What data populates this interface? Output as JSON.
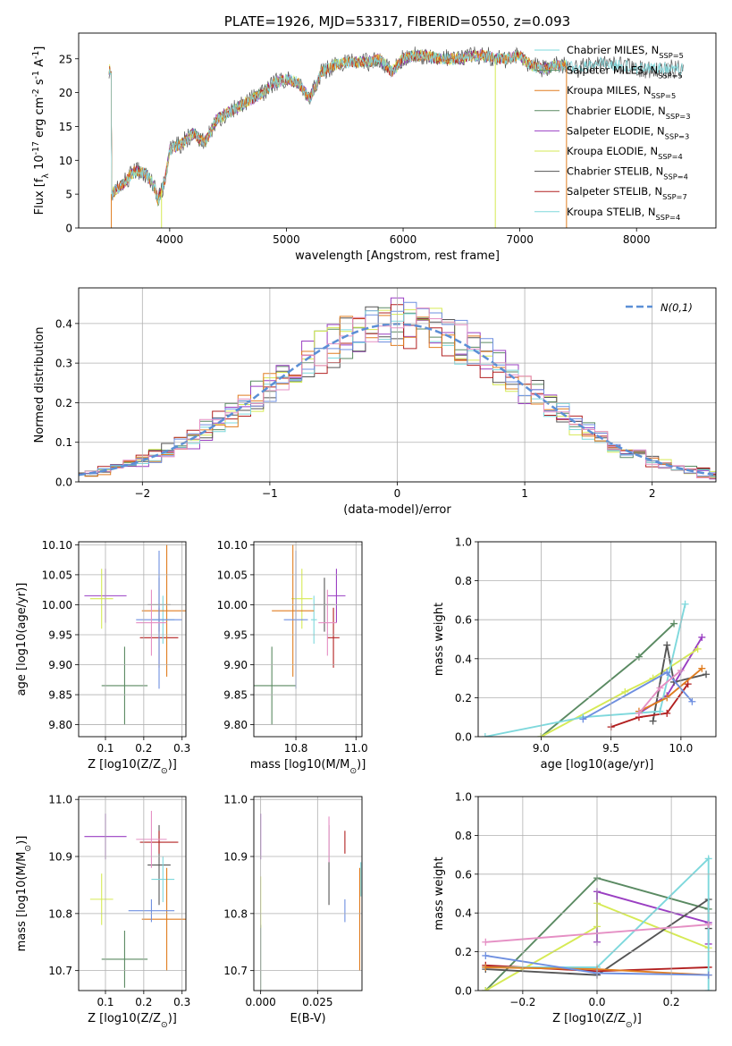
{
  "colors": {
    "c0": "#5a8a62",
    "c1": "#9a3fc2",
    "c2": "#d6ea55",
    "c3": "#555555",
    "c4": "#b22020",
    "c5": "#7ed8dc",
    "c6": "#e07d20",
    "c7": "#6e8fe0",
    "c8": "#e58fc4",
    "normal": "#5b8fd6",
    "grid": "#b0b0b0"
  },
  "chart_data": [
    {
      "id": "spectrum",
      "type": "line",
      "title": "PLATE=1926, MJD=53317, FIBERID=0550, z=0.093",
      "xlabel": "wavelength [Angstrom, rest frame]",
      "ylabel": "Flux [f_λ 10^-17 erg cm^-2 s^-1 A^-1]",
      "xlim": [
        3220,
        8680
      ],
      "ylim": [
        0,
        28.8
      ],
      "xticks": [
        "4000",
        "5000",
        "6000",
        "7000",
        "8000"
      ],
      "yticks": [
        "0",
        "5",
        "10",
        "15",
        "20",
        "25"
      ],
      "grid": false,
      "legend_position": "upper-right",
      "legend": [
        {
          "label": "Chabrier MILES, N_SSP=5",
          "color": "c5"
        },
        {
          "label": "Salpeter MILES, N_SSP=5",
          "color": "c0"
        },
        {
          "label": "Kroupa MILES, N_SSP=5",
          "color": "c6"
        },
        {
          "label": "Chabrier ELODIE, N_SSP=3",
          "color": "c0"
        },
        {
          "label": "Salpeter ELODIE, N_SSP=3",
          "color": "c1"
        },
        {
          "label": "Kroupa ELODIE, N_SSP=4",
          "color": "c2"
        },
        {
          "label": "Chabrier STELIB, N_SSP=4",
          "color": "c3"
        },
        {
          "label": "Salpeter STELIB, N_SSP=7",
          "color": "c4"
        },
        {
          "label": "Kroupa STELIB, N_SSP=4",
          "color": "c5"
        }
      ],
      "continuum": [
        [
          3500,
          5
        ],
        [
          3600,
          6.5
        ],
        [
          3700,
          8.5
        ],
        [
          3800,
          8
        ],
        [
          3870,
          6
        ],
        [
          3900,
          4
        ],
        [
          3960,
          7
        ],
        [
          4000,
          11.5
        ],
        [
          4100,
          12.5
        ],
        [
          4200,
          14
        ],
        [
          4300,
          12.5
        ],
        [
          4400,
          16
        ],
        [
          4500,
          17
        ],
        [
          4600,
          18
        ],
        [
          4700,
          19
        ],
        [
          4800,
          20
        ],
        [
          4900,
          21.5
        ],
        [
          5000,
          22
        ],
        [
          5100,
          21.5
        ],
        [
          5200,
          19
        ],
        [
          5300,
          23
        ],
        [
          5400,
          24
        ],
        [
          5500,
          24.5
        ],
        [
          5600,
          24.5
        ],
        [
          5700,
          24.5
        ],
        [
          5800,
          25
        ],
        [
          5900,
          23
        ],
        [
          6000,
          25
        ],
        [
          6100,
          25.5
        ],
        [
          6200,
          25.5
        ],
        [
          6300,
          25
        ],
        [
          6400,
          25
        ],
        [
          6500,
          25
        ],
        [
          6600,
          25.5
        ],
        [
          6700,
          25.5
        ],
        [
          6800,
          25
        ],
        [
          6900,
          25
        ],
        [
          7000,
          25.5
        ],
        [
          7100,
          24
        ],
        [
          7200,
          23.5
        ],
        [
          7300,
          24
        ],
        [
          7400,
          24
        ],
        [
          7500,
          23.5
        ],
        [
          7600,
          24
        ],
        [
          7700,
          24.5
        ],
        [
          7800,
          24
        ],
        [
          7900,
          24
        ],
        [
          8000,
          23.5
        ],
        [
          8100,
          23.5
        ],
        [
          8200,
          23.5
        ],
        [
          8300,
          23.5
        ],
        [
          8400,
          23.5
        ]
      ],
      "series": [
        {
          "color": "c3",
          "x0": 3480,
          "x1": 8400,
          "noise": 1.4
        },
        {
          "color": "c0",
          "x0": 3480,
          "x1": 7400,
          "noise": 0.9
        },
        {
          "color": "c1",
          "x0": 3480,
          "x1": 7400,
          "noise": 0.9
        },
        {
          "color": "c2",
          "x0": 3480,
          "x1": 7400,
          "noise": 0.9
        },
        {
          "color": "c4",
          "x0": 3480,
          "x1": 7400,
          "noise": 0.8
        },
        {
          "color": "c6",
          "x0": 3480,
          "x1": 7400,
          "noise": 0.8
        },
        {
          "color": "c5",
          "x0": 3480,
          "x1": 8400,
          "noise": 0.9
        }
      ],
      "drops": [
        {
          "x": 3500,
          "color": "c6"
        },
        {
          "x": 3930,
          "color": "c2"
        },
        {
          "x": 6790,
          "color": "c2"
        },
        {
          "x": 7400,
          "color": "c6"
        }
      ]
    },
    {
      "id": "residuals",
      "type": "histogram",
      "xlabel": "(data-model)/error",
      "ylabel": "Normed distribution",
      "xlim": [
        -2.5,
        2.5
      ],
      "ylim": [
        0,
        0.49
      ],
      "xticks": [
        "-2",
        "-1",
        "0",
        "1",
        "2"
      ],
      "yticks": [
        "0.0",
        "0.1",
        "0.2",
        "0.3",
        "0.4"
      ],
      "grid": true,
      "legend_position": "upper-right",
      "legend": [
        {
          "label": "N(0,1)",
          "color": "normal",
          "dashed": true
        }
      ],
      "bins": {
        "start": -2.55,
        "width": 0.1,
        "count": 51
      },
      "series_colors": [
        "c0",
        "c1",
        "c2",
        "c3",
        "c4",
        "c5",
        "c6",
        "c7",
        "c8"
      ]
    },
    {
      "id": "z-age",
      "type": "errorbar",
      "xlabel": "Z [log10(Z/Z_⊙)]",
      "ylabel": "age [log10(age/yr)]",
      "xlim": [
        0.03,
        0.31
      ],
      "ylim": [
        9.78,
        10.105
      ],
      "xticks": [
        "0.1",
        "0.2",
        "0.3"
      ],
      "yticks": [
        "9.80",
        "9.85",
        "9.90",
        "9.95",
        "10.00",
        "10.05",
        "10.10"
      ],
      "grid": true,
      "points": [
        {
          "color": "c0",
          "x": 0.15,
          "xerr": 0.06,
          "y": 9.865,
          "yerr": 0.065
        },
        {
          "color": "c1",
          "x": 0.1,
          "xerr": 0.055,
          "y": 10.015,
          "yerr": 0.045
        },
        {
          "color": "c2",
          "x": 0.09,
          "xerr": 0.03,
          "y": 10.01,
          "yerr": 0.05
        },
        {
          "color": "c3",
          "x": 0.24,
          "xerr": 0.03,
          "y": 10.0,
          "yerr": 0.045
        },
        {
          "color": "c4",
          "x": 0.24,
          "xerr": 0.05,
          "y": 9.945,
          "yerr": 0.05
        },
        {
          "color": "c5",
          "x": 0.25,
          "xerr": 0.03,
          "y": 9.975,
          "yerr": 0.04
        },
        {
          "color": "c6",
          "x": 0.26,
          "xerr": 0.065,
          "y": 9.99,
          "yerr": 0.11
        },
        {
          "color": "c7",
          "x": 0.24,
          "xerr": 0.06,
          "y": 9.975,
          "yerr": 0.115
        },
        {
          "color": "c8",
          "x": 0.22,
          "xerr": 0.04,
          "y": 9.97,
          "yerr": 0.055
        }
      ]
    },
    {
      "id": "mass-age",
      "type": "errorbar",
      "xlabel": "mass [log10(M/M_⊙)]",
      "ylabel": "",
      "xlim": [
        10.66,
        11.02
      ],
      "ylim": [
        9.78,
        10.105
      ],
      "xticks": [
        "10.8",
        "11.0"
      ],
      "yticks": [
        "9.80",
        "9.85",
        "9.90",
        "9.95",
        "10.00",
        "10.05",
        "10.10"
      ],
      "grid": true,
      "points": [
        {
          "color": "c0",
          "x": 10.72,
          "xerr": 0.08,
          "y": 9.865,
          "yerr": 0.065
        },
        {
          "color": "c1",
          "x": 10.935,
          "xerr": 0.03,
          "y": 10.015,
          "yerr": 0.045
        },
        {
          "color": "c2",
          "x": 10.82,
          "xerr": 0.035,
          "y": 10.01,
          "yerr": 0.05
        },
        {
          "color": "c3",
          "x": 10.895,
          "xerr": 0.035,
          "y": 10.0,
          "yerr": 0.045
        },
        {
          "color": "c4",
          "x": 10.925,
          "xerr": 0.02,
          "y": 9.945,
          "yerr": 0.05
        },
        {
          "color": "c5",
          "x": 10.86,
          "xerr": 0.01,
          "y": 9.975,
          "yerr": 0.04
        },
        {
          "color": "c6",
          "x": 10.79,
          "xerr": 0.07,
          "y": 9.99,
          "yerr": 0.11
        },
        {
          "color": "c7",
          "x": 10.8,
          "xerr": 0.04,
          "y": 9.975,
          "yerr": 0.115
        },
        {
          "color": "c8",
          "x": 10.905,
          "xerr": 0.03,
          "y": 9.97,
          "yerr": 0.055
        }
      ]
    },
    {
      "id": "age-weight",
      "type": "line",
      "xlabel": "age [log10(age/yr)]",
      "ylabel": "mass weight",
      "xlim": [
        8.55,
        10.25
      ],
      "ylim": [
        0,
        1.0
      ],
      "xticks": [
        "9.0",
        "9.5",
        "10.0"
      ],
      "yticks": [
        "0.0",
        "0.2",
        "0.4",
        "0.6",
        "0.8",
        "1.0"
      ],
      "grid": true,
      "series": [
        {
          "color": "c0",
          "x": [
            9.0,
            9.7,
            9.95
          ],
          "y": [
            0.0,
            0.41,
            0.58
          ]
        },
        {
          "color": "c1",
          "x": [
            9.7,
            9.9,
            10.15
          ],
          "y": [
            0.12,
            0.21,
            0.51
          ]
        },
        {
          "color": "c2",
          "x": [
            9.0,
            9.6,
            9.8,
            10.12
          ],
          "y": [
            0.0,
            0.23,
            0.3,
            0.45
          ]
        },
        {
          "color": "c3",
          "x": [
            9.8,
            9.9,
            9.95,
            10.18
          ],
          "y": [
            0.08,
            0.47,
            0.28,
            0.32
          ]
        },
        {
          "color": "c4",
          "x": [
            9.5,
            9.7,
            9.9,
            10.05
          ],
          "y": [
            0.05,
            0.1,
            0.12,
            0.27
          ]
        },
        {
          "color": "c5",
          "x": [
            8.6,
            9.3,
            9.85,
            10.03
          ],
          "y": [
            0.0,
            0.1,
            0.13,
            0.68
          ]
        },
        {
          "color": "c6",
          "x": [
            9.7,
            9.9,
            10.15
          ],
          "y": [
            0.13,
            0.2,
            0.35
          ]
        },
        {
          "color": "c7",
          "x": [
            9.3,
            9.9,
            10.08
          ],
          "y": [
            0.09,
            0.33,
            0.18
          ]
        },
        {
          "color": "c8",
          "x": [
            9.7,
            9.85,
            10.0
          ],
          "y": [
            0.12,
            0.25,
            0.34
          ]
        }
      ]
    },
    {
      "id": "z-mass",
      "type": "errorbar",
      "xlabel": "Z [log10(Z/Z_⊙)]",
      "ylabel": "mass [log10(M/M_⊙)]",
      "xlim": [
        0.03,
        0.31
      ],
      "ylim": [
        10.665,
        11.005
      ],
      "xticks": [
        "0.1",
        "0.2",
        "0.3"
      ],
      "yticks": [
        "10.7",
        "10.8",
        "10.9",
        "11.0"
      ],
      "grid": true,
      "points": [
        {
          "color": "c0",
          "x": 0.15,
          "xerr": 0.06,
          "y": 10.72,
          "yerr": 0.05
        },
        {
          "color": "c1",
          "x": 0.1,
          "xerr": 0.055,
          "y": 10.935,
          "yerr": 0.04
        },
        {
          "color": "c2",
          "x": 0.09,
          "xerr": 0.03,
          "y": 10.825,
          "yerr": 0.045
        },
        {
          "color": "c3",
          "x": 0.24,
          "xerr": 0.03,
          "y": 10.885,
          "yerr": 0.07
        },
        {
          "color": "c4",
          "x": 0.24,
          "xerr": 0.05,
          "y": 10.925,
          "yerr": 0.02
        },
        {
          "color": "c5",
          "x": 0.25,
          "xerr": 0.03,
          "y": 10.86,
          "yerr": 0.04
        },
        {
          "color": "c6",
          "x": 0.26,
          "xerr": 0.065,
          "y": 10.79,
          "yerr": 0.09
        },
        {
          "color": "c7",
          "x": 0.22,
          "xerr": 0.06,
          "y": 10.805,
          "yerr": 0.02
        },
        {
          "color": "c8",
          "x": 0.22,
          "xerr": 0.04,
          "y": 10.93,
          "yerr": 0.05
        }
      ]
    },
    {
      "id": "ebv-mass",
      "type": "errorbar",
      "xlabel": "E(B-V)",
      "ylabel": "",
      "xlim": [
        -0.003,
        0.0445
      ],
      "ylim": [
        10.665,
        11.005
      ],
      "xticks": [
        "0.000",
        "0.025"
      ],
      "yticks": [
        "10.7",
        "10.8",
        "10.9",
        "11.0"
      ],
      "grid": true,
      "points": [
        {
          "color": "c0",
          "x": 0.0,
          "xerr": 0,
          "y": 10.72,
          "yerr": 0.06
        },
        {
          "color": "c1",
          "x": 0.0,
          "xerr": 0,
          "y": 10.935,
          "yerr": 0.04
        },
        {
          "color": "c2",
          "x": 0.0,
          "xerr": 0,
          "y": 10.82,
          "yerr": 0.045
        },
        {
          "color": "c3",
          "x": 0.03,
          "xerr": 0,
          "y": 10.885,
          "yerr": 0.07
        },
        {
          "color": "c4",
          "x": 0.037,
          "xerr": 0,
          "y": 10.925,
          "yerr": 0.02
        },
        {
          "color": "c5",
          "x": 0.044,
          "xerr": 0,
          "y": 10.86,
          "yerr": 0.03
        },
        {
          "color": "c6",
          "x": 0.0435,
          "xerr": 0,
          "y": 10.79,
          "yerr": 0.09
        },
        {
          "color": "c7",
          "x": 0.037,
          "xerr": 0,
          "y": 10.805,
          "yerr": 0.02
        },
        {
          "color": "c8",
          "x": 0.03,
          "xerr": 0,
          "y": 10.93,
          "yerr": 0.04
        }
      ]
    },
    {
      "id": "z-weight",
      "type": "line",
      "xlabel": "Z [log10(Z/Z_⊙)]",
      "ylabel": "mass weight",
      "xlim": [
        -0.32,
        0.32
      ],
      "ylim": [
        0,
        1.0
      ],
      "xticks": [
        "-0.2",
        "0.0",
        "0.2"
      ],
      "yticks": [
        "0.0",
        "0.2",
        "0.4",
        "0.6",
        "0.8",
        "1.0"
      ],
      "grid": true,
      "series": [
        {
          "color": "c0",
          "x": [
            -0.3,
            0.0,
            0.3
          ],
          "y": [
            0.0,
            0.58,
            0.42
          ]
        },
        {
          "color": "c1",
          "x": [
            0.0,
            0.0,
            0.3,
            0.3
          ],
          "y": [
            0.25,
            0.51,
            0.35,
            0.24
          ]
        },
        {
          "color": "c2",
          "x": [
            -0.3,
            0.0,
            0.0,
            0.3
          ],
          "y": [
            0.0,
            0.33,
            0.45,
            0.22
          ]
        },
        {
          "color": "c3",
          "x": [
            -0.3,
            0.0,
            0.3,
            0.3
          ],
          "y": [
            0.11,
            0.08,
            0.47,
            0.32
          ]
        },
        {
          "color": "c4",
          "x": [
            -0.3,
            0.0,
            0.3
          ],
          "y": [
            0.13,
            0.1,
            0.12
          ]
        },
        {
          "color": "c5",
          "x": [
            -0.3,
            0.0,
            0.3,
            0.3
          ],
          "y": [
            0.12,
            0.12,
            0.68,
            0.0
          ]
        },
        {
          "color": "c6",
          "x": [
            -0.3,
            0.0,
            0.3
          ],
          "y": [
            0.12,
            0.11,
            0.08
          ]
        },
        {
          "color": "c7",
          "x": [
            -0.3,
            0.0,
            0.3
          ],
          "y": [
            0.18,
            0.09,
            0.08
          ]
        },
        {
          "color": "c8",
          "x": [
            -0.3,
            0.3
          ],
          "y": [
            0.25,
            0.34
          ]
        }
      ]
    }
  ]
}
